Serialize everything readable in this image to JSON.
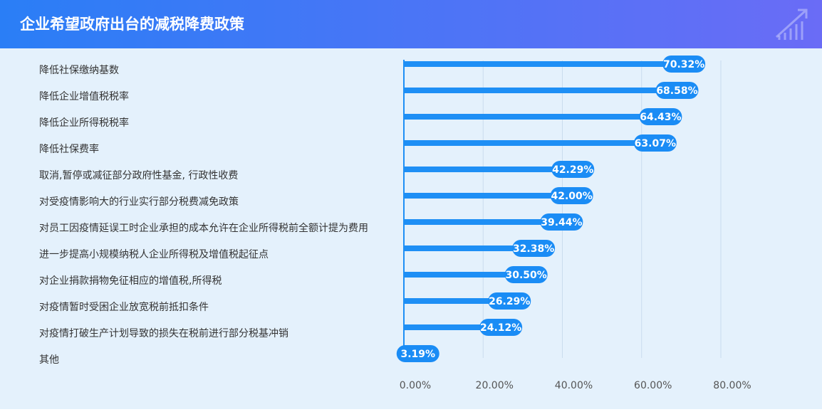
{
  "chart_data": {
    "type": "bar",
    "orientation": "horizontal",
    "title": "企业希望政府出台的减税降费政策",
    "categories": [
      "降低社保缴纳基数",
      "降低企业增值税税率",
      "降低企业所得税税率",
      "降低社保费率",
      "取消,暂停或减征部分政府性基金, 行政性收费",
      "对受疫情影响大的行业实行部分税费减免政策",
      "对员工因疫情延误工时企业承担的成本允许在企业所得税前全额计提为费用",
      "进一步提高小规模纳税人企业所得税及增值税起征点",
      "对企业捐款捐物免征相应的增值税,所得税",
      "对疫情暂时受困企业放宽税前抵扣条件",
      "对疫情打破生产计划导致的损失在税前进行部分税基冲销",
      "其他"
    ],
    "values": [
      70.32,
      68.58,
      64.43,
      63.07,
      42.29,
      42.0,
      39.44,
      32.38,
      30.5,
      26.29,
      24.12,
      3.19
    ],
    "value_labels": [
      "70.32%",
      "68.58%",
      "64.43%",
      "63.07%",
      "42.29%",
      "42.00%",
      "39.44%",
      "32.38%",
      "30.50%",
      "26.29%",
      "24.12%",
      "3.19%"
    ],
    "color": "#1e8ff5",
    "xlim": [
      0,
      80
    ],
    "xticks": [
      {
        "value": 0,
        "label": "0.00%"
      },
      {
        "value": 20,
        "label": "20.00%"
      },
      {
        "value": 40,
        "label": "40.00%"
      },
      {
        "value": 60,
        "label": "60.00%"
      },
      {
        "value": 80,
        "label": "80.00%"
      }
    ],
    "grid": true
  }
}
